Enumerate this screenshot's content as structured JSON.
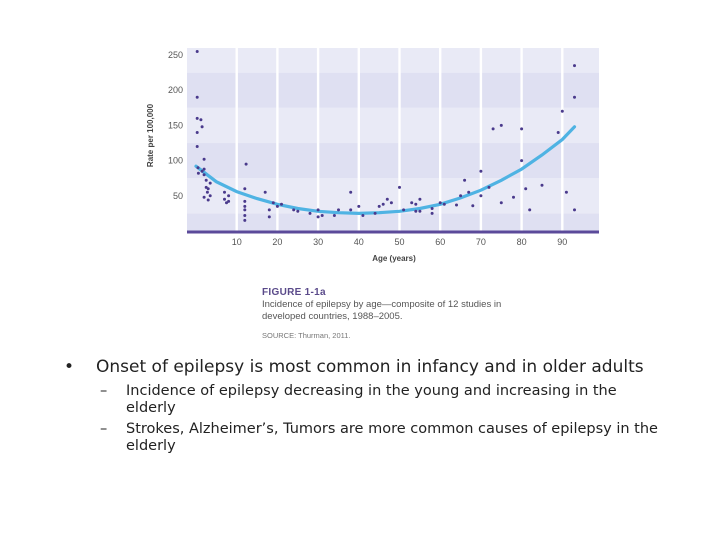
{
  "figure": {
    "label": "FIGURE 1-1a",
    "caption": "Incidence of epilepsy by age—composite of 12 studies in developed countries, 1988–2005.",
    "source": "SOURCE: Thurman, 2011."
  },
  "chart_data": {
    "type": "scatter",
    "xlabel": "Age (years)",
    "ylabel": "Rate per 100,000",
    "xlim": [
      0,
      95
    ],
    "ylim": [
      0,
      260
    ],
    "x_ticks": [
      10,
      20,
      30,
      40,
      50,
      60,
      70,
      80,
      90
    ],
    "y_ticks": [
      50,
      100,
      150,
      200,
      250
    ],
    "band_color": "#dfe0f2",
    "band_color_alt": "#e9eaf6",
    "point_color": "#4a3a8c",
    "trend_color": "#4fb3e3",
    "axis_color": "#5b4a9a",
    "points": [
      [
        0.3,
        255
      ],
      [
        0.3,
        190
      ],
      [
        0.3,
        160
      ],
      [
        0.3,
        140
      ],
      [
        0.3,
        120
      ],
      [
        0.5,
        90
      ],
      [
        0.6,
        82
      ],
      [
        1.2,
        158
      ],
      [
        1.5,
        148
      ],
      [
        1.5,
        85
      ],
      [
        2,
        80
      ],
      [
        2,
        48
      ],
      [
        2,
        102
      ],
      [
        2,
        88
      ],
      [
        2.5,
        72
      ],
      [
        2.5,
        62
      ],
      [
        2.8,
        55
      ],
      [
        3,
        60
      ],
      [
        3,
        44
      ],
      [
        3.5,
        68
      ],
      [
        3.5,
        50
      ],
      [
        7,
        55
      ],
      [
        7,
        45
      ],
      [
        7.5,
        40
      ],
      [
        8,
        50
      ],
      [
        8,
        42
      ],
      [
        12,
        35
      ],
      [
        12,
        30
      ],
      [
        12,
        22
      ],
      [
        12,
        42
      ],
      [
        12,
        60
      ],
      [
        12,
        15
      ],
      [
        12.3,
        95
      ],
      [
        17,
        55
      ],
      [
        18,
        30
      ],
      [
        18,
        20
      ],
      [
        19,
        40
      ],
      [
        20,
        35
      ],
      [
        21,
        38
      ],
      [
        24,
        30
      ],
      [
        25,
        28
      ],
      [
        28,
        25
      ],
      [
        30,
        30
      ],
      [
        30,
        20
      ],
      [
        31,
        22
      ],
      [
        34,
        22
      ],
      [
        35,
        30
      ],
      [
        38,
        30
      ],
      [
        38,
        55
      ],
      [
        40,
        35
      ],
      [
        41,
        22
      ],
      [
        44,
        25
      ],
      [
        45,
        35
      ],
      [
        46,
        38
      ],
      [
        47,
        45
      ],
      [
        48,
        40
      ],
      [
        50,
        62
      ],
      [
        51,
        30
      ],
      [
        53,
        40
      ],
      [
        54,
        28
      ],
      [
        54,
        38
      ],
      [
        55,
        28
      ],
      [
        55,
        45
      ],
      [
        58,
        32
      ],
      [
        58,
        25
      ],
      [
        60,
        40
      ],
      [
        61,
        38
      ],
      [
        64,
        37
      ],
      [
        65,
        50
      ],
      [
        66,
        72
      ],
      [
        67,
        55
      ],
      [
        68,
        36
      ],
      [
        70,
        50
      ],
      [
        70,
        85
      ],
      [
        72,
        62
      ],
      [
        73,
        145
      ],
      [
        75,
        150
      ],
      [
        75,
        40
      ],
      [
        78,
        48
      ],
      [
        80,
        145
      ],
      [
        80,
        100
      ],
      [
        81,
        60
      ],
      [
        82,
        30
      ],
      [
        85,
        65
      ],
      [
        89,
        140
      ],
      [
        90,
        170
      ],
      [
        91,
        55
      ],
      [
        93,
        190
      ],
      [
        93,
        235
      ],
      [
        93,
        30
      ]
    ],
    "trend": [
      [
        0,
        92
      ],
      [
        5,
        70
      ],
      [
        10,
        56
      ],
      [
        15,
        46
      ],
      [
        20,
        38
      ],
      [
        25,
        32
      ],
      [
        30,
        28
      ],
      [
        35,
        26
      ],
      [
        40,
        25
      ],
      [
        45,
        26
      ],
      [
        50,
        28
      ],
      [
        55,
        32
      ],
      [
        60,
        38
      ],
      [
        65,
        47
      ],
      [
        70,
        58
      ],
      [
        75,
        72
      ],
      [
        80,
        88
      ],
      [
        85,
        108
      ],
      [
        90,
        130
      ],
      [
        93,
        148
      ]
    ]
  },
  "bullets": [
    {
      "mark": "•",
      "text": "Onset of epilepsy is most common in infancy and in older adults",
      "subs": [
        {
          "mark": "–",
          "text": "Incidence of epilepsy decreasing in the young and increasing in the elderly"
        },
        {
          "mark": "–",
          "text": "Strokes, Alzheimer’s, Tumors are more common causes of epilepsy in the elderly"
        }
      ]
    }
  ]
}
